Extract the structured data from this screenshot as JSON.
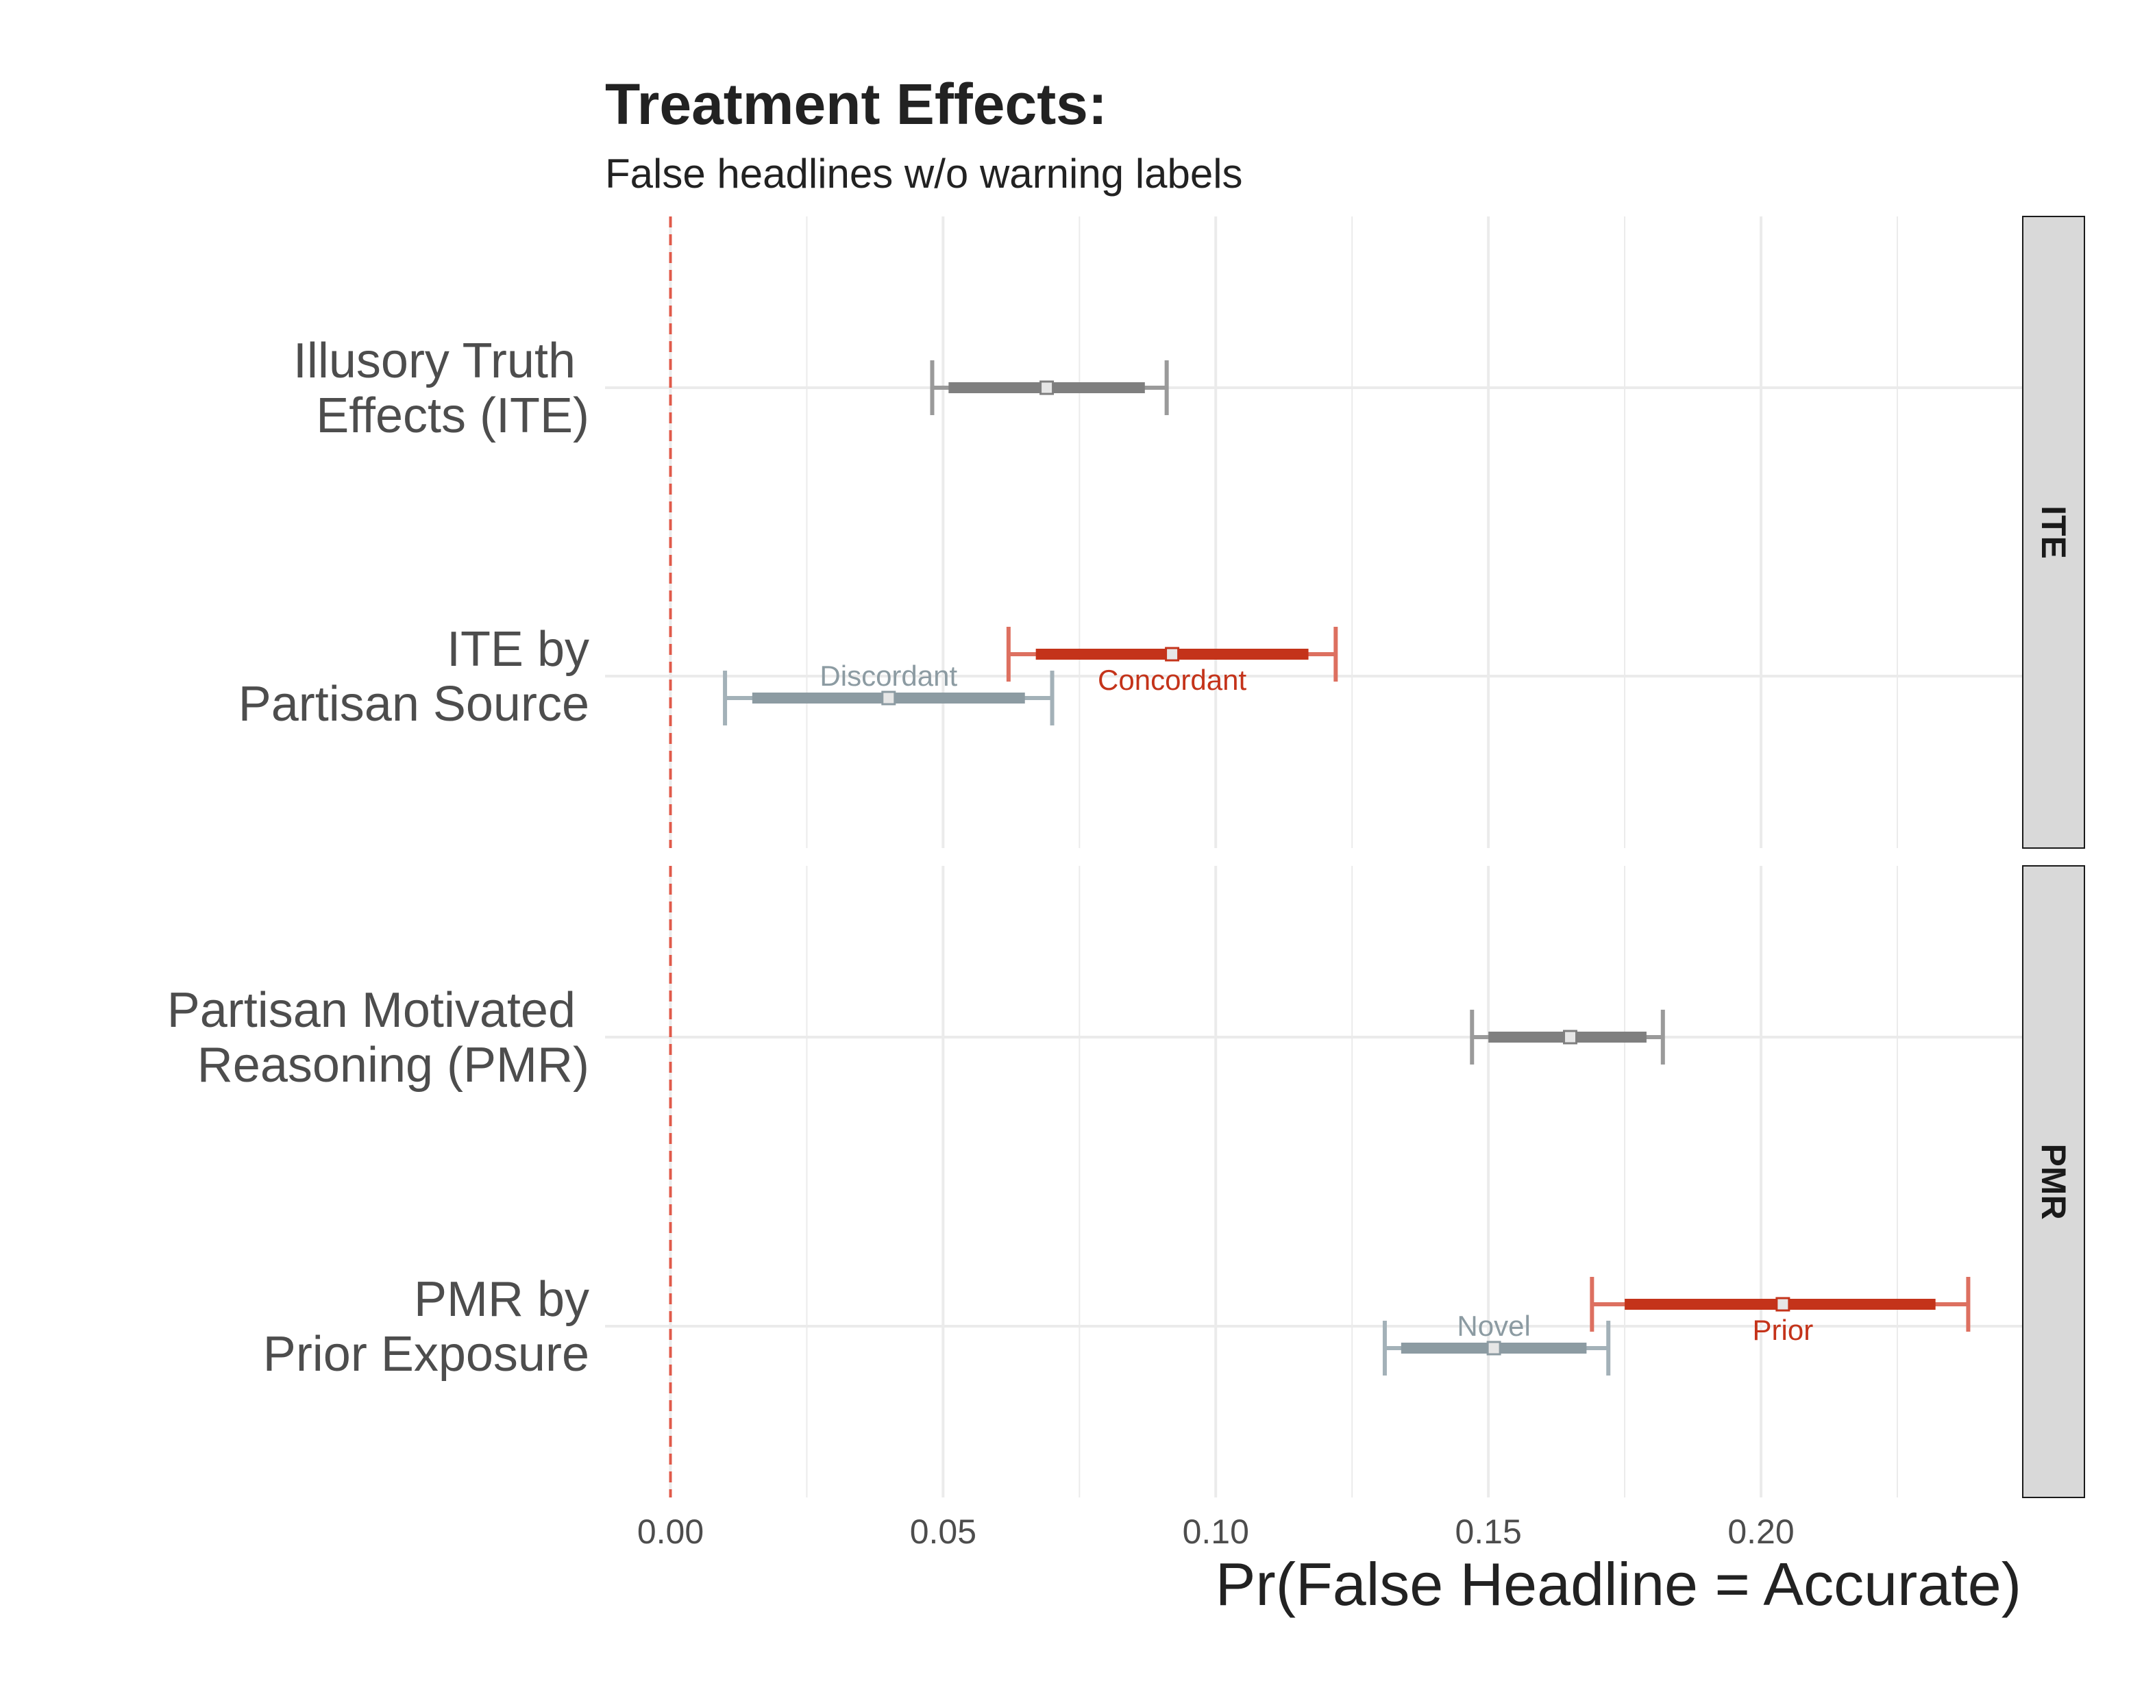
{
  "chart_data": {
    "type": "forest",
    "title": "Treatment Effects:",
    "subtitle": "False headlines w/o warning labels",
    "xlabel": "Pr(False Headline = Accurate)",
    "xlim": [
      -0.012,
      0.248
    ],
    "x_ticks": [
      "0.00",
      "0.05",
      "0.10",
      "0.15",
      "0.20"
    ],
    "x_tick_values": [
      0.0,
      0.05,
      0.1,
      0.15,
      0.2
    ],
    "reference_line": 0.0,
    "colors": {
      "overall": "#7f7f7f",
      "overall_ci": "#9a9a9a",
      "concordant_prior": "#c4331a",
      "concordant_prior_ci": "#dd7060",
      "discordant_novel": "#8c9ba2",
      "discordant_novel_ci": "#a3b1b8",
      "reference_line": "#e05a4a",
      "grid": "#ebebeb",
      "strip_fill": "#d9d9d9"
    },
    "panels": [
      {
        "strip": "ITE",
        "rows": [
          {
            "label": "Illusory Truth \nEffects (ITE)",
            "points": [
              {
                "group": "overall",
                "label": "",
                "estimate": 0.069,
                "ci_inner": [
                  0.051,
                  0.087
                ],
                "ci_outer": [
                  0.048,
                  0.091
                ]
              }
            ]
          },
          {
            "label": "ITE by\nPartisan Source",
            "points": [
              {
                "group": "concordant_prior",
                "label": "Concordant",
                "estimate": 0.092,
                "ci_inner": [
                  0.067,
                  0.117
                ],
                "ci_outer": [
                  0.062,
                  0.122
                ]
              },
              {
                "group": "discordant_novel",
                "label": "Discordant",
                "estimate": 0.04,
                "ci_inner": [
                  0.015,
                  0.065
                ],
                "ci_outer": [
                  0.01,
                  0.07
                ]
              }
            ]
          }
        ]
      },
      {
        "strip": "PMR",
        "rows": [
          {
            "label": "Partisan Motivated \nReasoning (PMR)",
            "points": [
              {
                "group": "overall",
                "label": "",
                "estimate": 0.165,
                "ci_inner": [
                  0.15,
                  0.179
                ],
                "ci_outer": [
                  0.147,
                  0.182
                ]
              }
            ]
          },
          {
            "label": "PMR by\nPrior Exposure",
            "points": [
              {
                "group": "concordant_prior",
                "label": "Prior",
                "estimate": 0.204,
                "ci_inner": [
                  0.175,
                  0.232
                ],
                "ci_outer": [
                  0.169,
                  0.238
                ]
              },
              {
                "group": "discordant_novel",
                "label": "Novel",
                "estimate": 0.151,
                "ci_inner": [
                  0.134,
                  0.168
                ],
                "ci_outer": [
                  0.131,
                  0.172
                ]
              }
            ]
          }
        ]
      }
    ]
  }
}
